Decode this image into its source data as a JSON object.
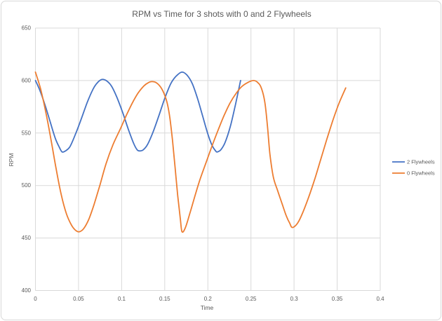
{
  "chart_data": {
    "type": "line",
    "title": "RPM vs Time for 3 shots with 0 and 2 Flywheels",
    "xlabel": "Time",
    "ylabel": "RPM",
    "xlim": [
      0,
      0.4
    ],
    "ylim": [
      400,
      650
    ],
    "grid": true,
    "legend_position": "right-middle",
    "x_tick_values": [
      0,
      0.05,
      0.1,
      0.15,
      0.2,
      0.25,
      0.3,
      0.35,
      0.4
    ],
    "x_tick_labels": [
      "0",
      "0.05",
      "0.1",
      "0.15",
      "0.2",
      "0.25",
      "0.3",
      "0.35",
      "0.4"
    ],
    "y_tick_values": [
      400,
      450,
      500,
      550,
      600,
      650
    ],
    "y_tick_labels": [
      "400",
      "450",
      "500",
      "550",
      "600",
      "650"
    ],
    "colors": {
      "gridline": "#d9d9d9",
      "text": "#595959",
      "frame_border": "#d8d8d8",
      "background": "#ffffff"
    },
    "series": [
      {
        "name": "2 Flywheels",
        "color": "#4472C4",
        "points": [
          [
            0,
            600
          ],
          [
            0.005,
            591
          ],
          [
            0.011,
            577
          ],
          [
            0.017,
            561
          ],
          [
            0.023,
            545
          ],
          [
            0.028,
            536
          ],
          [
            0.031,
            532
          ],
          [
            0.035,
            533
          ],
          [
            0.04,
            537
          ],
          [
            0.046,
            548
          ],
          [
            0.053,
            563
          ],
          [
            0.06,
            579
          ],
          [
            0.067,
            592
          ],
          [
            0.072,
            598
          ],
          [
            0.077,
            601
          ],
          [
            0.082,
            600
          ],
          [
            0.088,
            595
          ],
          [
            0.094,
            585
          ],
          [
            0.101,
            570
          ],
          [
            0.108,
            553
          ],
          [
            0.114,
            540
          ],
          [
            0.118,
            534
          ],
          [
            0.121,
            533
          ],
          [
            0.125,
            534
          ],
          [
            0.13,
            539
          ],
          [
            0.136,
            550
          ],
          [
            0.143,
            566
          ],
          [
            0.15,
            583
          ],
          [
            0.157,
            597
          ],
          [
            0.163,
            604
          ],
          [
            0.17,
            608
          ],
          [
            0.176,
            605
          ],
          [
            0.182,
            597
          ],
          [
            0.188,
            583
          ],
          [
            0.194,
            566
          ],
          [
            0.2,
            549
          ],
          [
            0.205,
            538
          ],
          [
            0.209,
            533
          ],
          [
            0.211,
            532
          ],
          [
            0.215,
            534
          ],
          [
            0.22,
            541
          ],
          [
            0.226,
            556
          ],
          [
            0.232,
            577
          ],
          [
            0.238,
            600
          ]
        ]
      },
      {
        "name": "0 Flywheels",
        "color": "#ED7D31",
        "points": [
          [
            0,
            608
          ],
          [
            0.006,
            592
          ],
          [
            0.012,
            570
          ],
          [
            0.018,
            544
          ],
          [
            0.024,
            516
          ],
          [
            0.03,
            491
          ],
          [
            0.036,
            473
          ],
          [
            0.042,
            462
          ],
          [
            0.047,
            457
          ],
          [
            0.051,
            456
          ],
          [
            0.056,
            459
          ],
          [
            0.062,
            468
          ],
          [
            0.068,
            482
          ],
          [
            0.075,
            501
          ],
          [
            0.082,
            521
          ],
          [
            0.09,
            539
          ],
          [
            0.098,
            553
          ],
          [
            0.105,
            566
          ],
          [
            0.112,
            578
          ],
          [
            0.119,
            588
          ],
          [
            0.126,
            595
          ],
          [
            0.131,
            598
          ],
          [
            0.135,
            599
          ],
          [
            0.14,
            598
          ],
          [
            0.145,
            594
          ],
          [
            0.149,
            588
          ],
          [
            0.153,
            578
          ],
          [
            0.156,
            564
          ],
          [
            0.159,
            543
          ],
          [
            0.162,
            517
          ],
          [
            0.165,
            491
          ],
          [
            0.168,
            469
          ],
          [
            0.17,
            456
          ],
          [
            0.174,
            460
          ],
          [
            0.179,
            473
          ],
          [
            0.185,
            490
          ],
          [
            0.191,
            506
          ],
          [
            0.198,
            522
          ],
          [
            0.205,
            538
          ],
          [
            0.212,
            553
          ],
          [
            0.219,
            567
          ],
          [
            0.226,
            579
          ],
          [
            0.233,
            588
          ],
          [
            0.239,
            594
          ],
          [
            0.246,
            598
          ],
          [
            0.253,
            600
          ],
          [
            0.258,
            598
          ],
          [
            0.262,
            593
          ],
          [
            0.266,
            580
          ],
          [
            0.269,
            558
          ],
          [
            0.272,
            530
          ],
          [
            0.276,
            508
          ],
          [
            0.281,
            495
          ],
          [
            0.286,
            483
          ],
          [
            0.291,
            471
          ],
          [
            0.295,
            464
          ],
          [
            0.298,
            460
          ],
          [
            0.304,
            464
          ],
          [
            0.31,
            474
          ],
          [
            0.317,
            489
          ],
          [
            0.324,
            506
          ],
          [
            0.331,
            525
          ],
          [
            0.338,
            544
          ],
          [
            0.345,
            562
          ],
          [
            0.352,
            578
          ],
          [
            0.36,
            593
          ]
        ]
      }
    ]
  }
}
